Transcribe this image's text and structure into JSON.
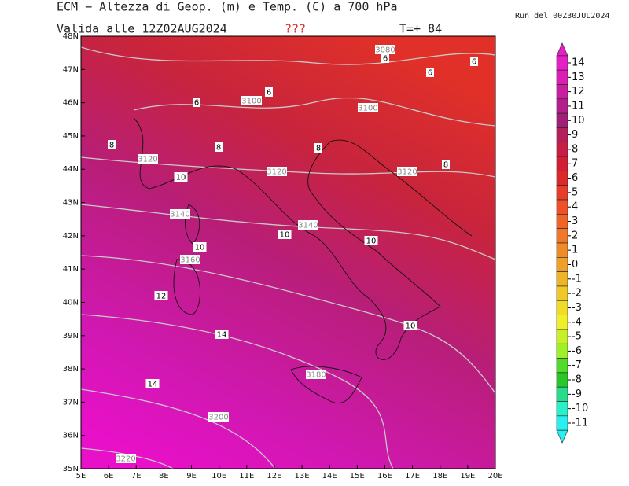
{
  "header": {
    "title": "ECM − Altezza di Geop. (m) e Temp. (C) a 700 hPa",
    "valid": "Valida alle 12Z02AUG2024",
    "flag": "???",
    "step": "T=+ 84",
    "run": "Run del 00Z30JUL2024"
  },
  "map": {
    "lat_labels": [
      "48N",
      "47N",
      "46N",
      "45N",
      "44N",
      "43N",
      "42N",
      "41N",
      "40N",
      "39N",
      "38N",
      "37N",
      "36N",
      "35N"
    ],
    "lon_labels": [
      "5E",
      "6E",
      "7E",
      "8E",
      "9E",
      "10E",
      "11E",
      "12E",
      "13E",
      "14E",
      "15E",
      "16E",
      "17E",
      "18E",
      "19E",
      "20E"
    ],
    "contour_labels": [
      3080,
      6,
      6,
      6,
      6,
      3100,
      6,
      3100,
      8,
      8,
      8,
      3120,
      10,
      3120,
      3120,
      8,
      3140,
      3140,
      10,
      10,
      10,
      3160,
      12,
      10,
      14,
      3180,
      14,
      3200,
      3220
    ]
  },
  "colorbar": {
    "values": [
      14,
      13,
      12,
      11,
      10,
      9,
      8,
      7,
      6,
      5,
      4,
      3,
      2,
      1,
      0,
      -1,
      -2,
      -3,
      -4,
      -5,
      -6,
      -7,
      -8,
      -9,
      -10,
      -11
    ],
    "colors": [
      "#e61ec8",
      "#dc1eb4",
      "#c81ea0",
      "#b41e8c",
      "#a01e78",
      "#b41e5a",
      "#c81e46",
      "#d21e32",
      "#dc2828",
      "#e63c28",
      "#f05028",
      "#f06428",
      "#f07828",
      "#f08c28",
      "#f0a028",
      "#f0b428",
      "#f0c828",
      "#f0dc28",
      "#f0f028",
      "#c8f028",
      "#a0f028",
      "#50dc28",
      "#28c828",
      "#28dc8c",
      "#28f0c8",
      "#28f0f0"
    ]
  }
}
